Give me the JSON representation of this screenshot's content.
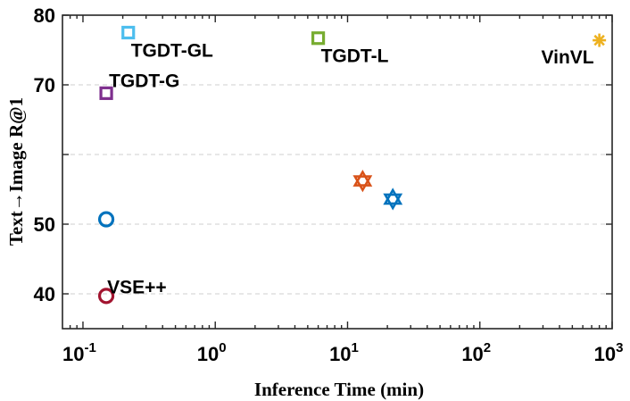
{
  "chart_data": {
    "type": "scatter",
    "title": "",
    "xlabel": "Inference Time (min)",
    "ylabel": "Text→Image R@1",
    "xscale": "log",
    "xlim": [
      0.07,
      1000
    ],
    "ylim": [
      35,
      80
    ],
    "grid": "horizontal dashed",
    "xticks": [
      {
        "value": 0.1,
        "base": "10",
        "exp": "-1"
      },
      {
        "value": 1,
        "base": "10",
        "exp": "0"
      },
      {
        "value": 10,
        "base": "10",
        "exp": "1"
      },
      {
        "value": 100,
        "base": "10",
        "exp": "2"
      },
      {
        "value": 1000,
        "base": "10",
        "exp": "3"
      }
    ],
    "yticks": [
      {
        "value": 40,
        "label": "40"
      },
      {
        "value": 50,
        "label": "50"
      },
      {
        "value": 60,
        "label": ""
      },
      {
        "value": 70,
        "label": "70"
      },
      {
        "value": 80,
        "label": "80"
      }
    ],
    "points": [
      {
        "label": "VSE++",
        "x": 0.15,
        "y": 39.7,
        "marker": "circle",
        "color": "#a2142f"
      },
      {
        "label": "",
        "x": 0.15,
        "y": 50.7,
        "marker": "circle",
        "color": "#0072bd"
      },
      {
        "label": "TGDT-G",
        "x": 0.15,
        "y": 68.8,
        "marker": "square",
        "color": "#7e2f8e"
      },
      {
        "label": "TGDT-GL",
        "x": 0.22,
        "y": 77.5,
        "marker": "square",
        "color": "#4dbeee"
      },
      {
        "label": "TGDT-L",
        "x": 6,
        "y": 76.7,
        "marker": "square",
        "color": "#77ac30"
      },
      {
        "label": "",
        "x": 13,
        "y": 56.2,
        "marker": "hexagram",
        "color": "#d95319"
      },
      {
        "label": "",
        "x": 22,
        "y": 53.6,
        "marker": "hexagram",
        "color": "#0072bd"
      },
      {
        "label": "VinVL",
        "x": 800,
        "y": 76.4,
        "marker": "asterisk",
        "color": "#edb120"
      }
    ]
  }
}
